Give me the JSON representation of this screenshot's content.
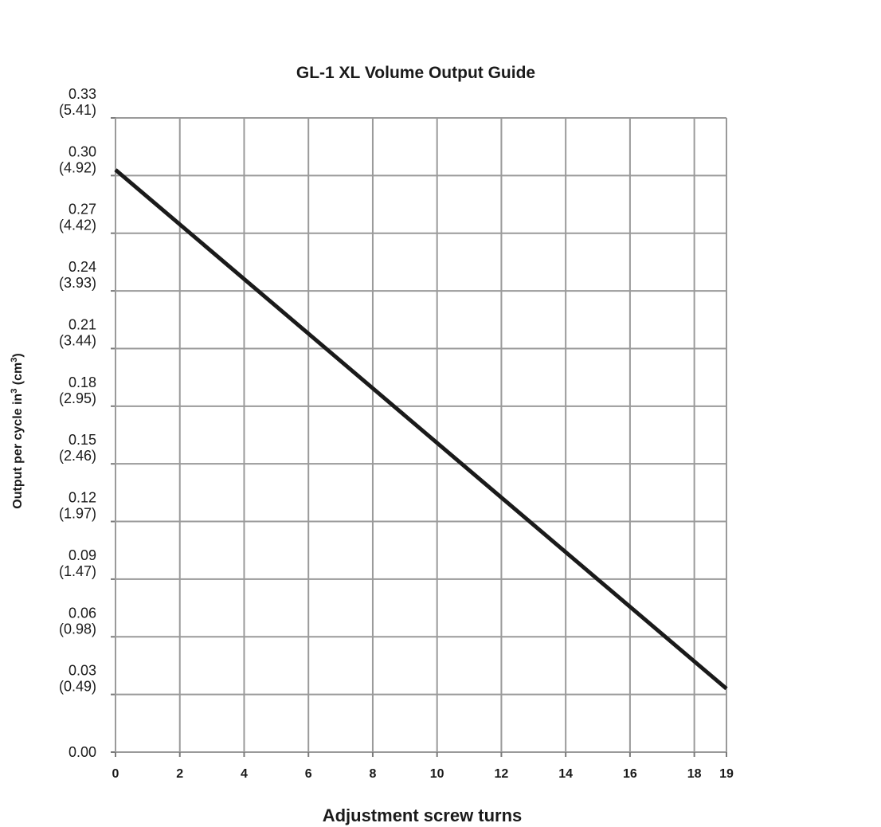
{
  "chart_data": {
    "type": "line",
    "title": "GL-1 XL Volume Output Guide",
    "xlabel": "Adjustment screw turns",
    "ylabel": {
      "prefix": "Output per cycle in",
      "sup1": "3",
      "middle": " (cm",
      "sup2": "3",
      "suffix": ")"
    },
    "xlim": [
      0,
      19
    ],
    "ylim": [
      0,
      0.33
    ],
    "x_ticks": [
      {
        "value": 0,
        "label": "0"
      },
      {
        "value": 2,
        "label": "2"
      },
      {
        "value": 4,
        "label": "4"
      },
      {
        "value": 6,
        "label": "6"
      },
      {
        "value": 8,
        "label": "8"
      },
      {
        "value": 10,
        "label": "10"
      },
      {
        "value": 12,
        "label": "12"
      },
      {
        "value": 14,
        "label": "14"
      },
      {
        "value": 16,
        "label": "16"
      },
      {
        "value": 18,
        "label": "18"
      },
      {
        "value": 19,
        "label": "19"
      }
    ],
    "y_ticks": [
      {
        "value": 0.0,
        "label": "0.00",
        "sublabel": ""
      },
      {
        "value": 0.03,
        "label": "0.03",
        "sublabel": "(0.49)"
      },
      {
        "value": 0.06,
        "label": "0.06",
        "sublabel": "(0.98)"
      },
      {
        "value": 0.09,
        "label": "0.09",
        "sublabel": "(1.47)"
      },
      {
        "value": 0.12,
        "label": "0.12",
        "sublabel": "(1.97)"
      },
      {
        "value": 0.15,
        "label": "0.15",
        "sublabel": "(2.46)"
      },
      {
        "value": 0.18,
        "label": "0.18",
        "sublabel": "(2.95)"
      },
      {
        "value": 0.21,
        "label": "0.21",
        "sublabel": "(3.44)"
      },
      {
        "value": 0.24,
        "label": "0.24",
        "sublabel": "(3.93)"
      },
      {
        "value": 0.27,
        "label": "0.27",
        "sublabel": "(4.42)"
      },
      {
        "value": 0.3,
        "label": "0.30",
        "sublabel": "(4.92)"
      },
      {
        "value": 0.33,
        "label": "0.33",
        "sublabel": "(5.41)"
      }
    ],
    "x_gridlines": [
      0,
      2,
      4,
      6,
      8,
      10,
      12,
      14,
      16,
      18,
      19
    ],
    "grid": true,
    "series": [
      {
        "x": [
          0,
          19
        ],
        "y": [
          0.303,
          0.033
        ],
        "color": "#1a1a1a"
      }
    ]
  }
}
